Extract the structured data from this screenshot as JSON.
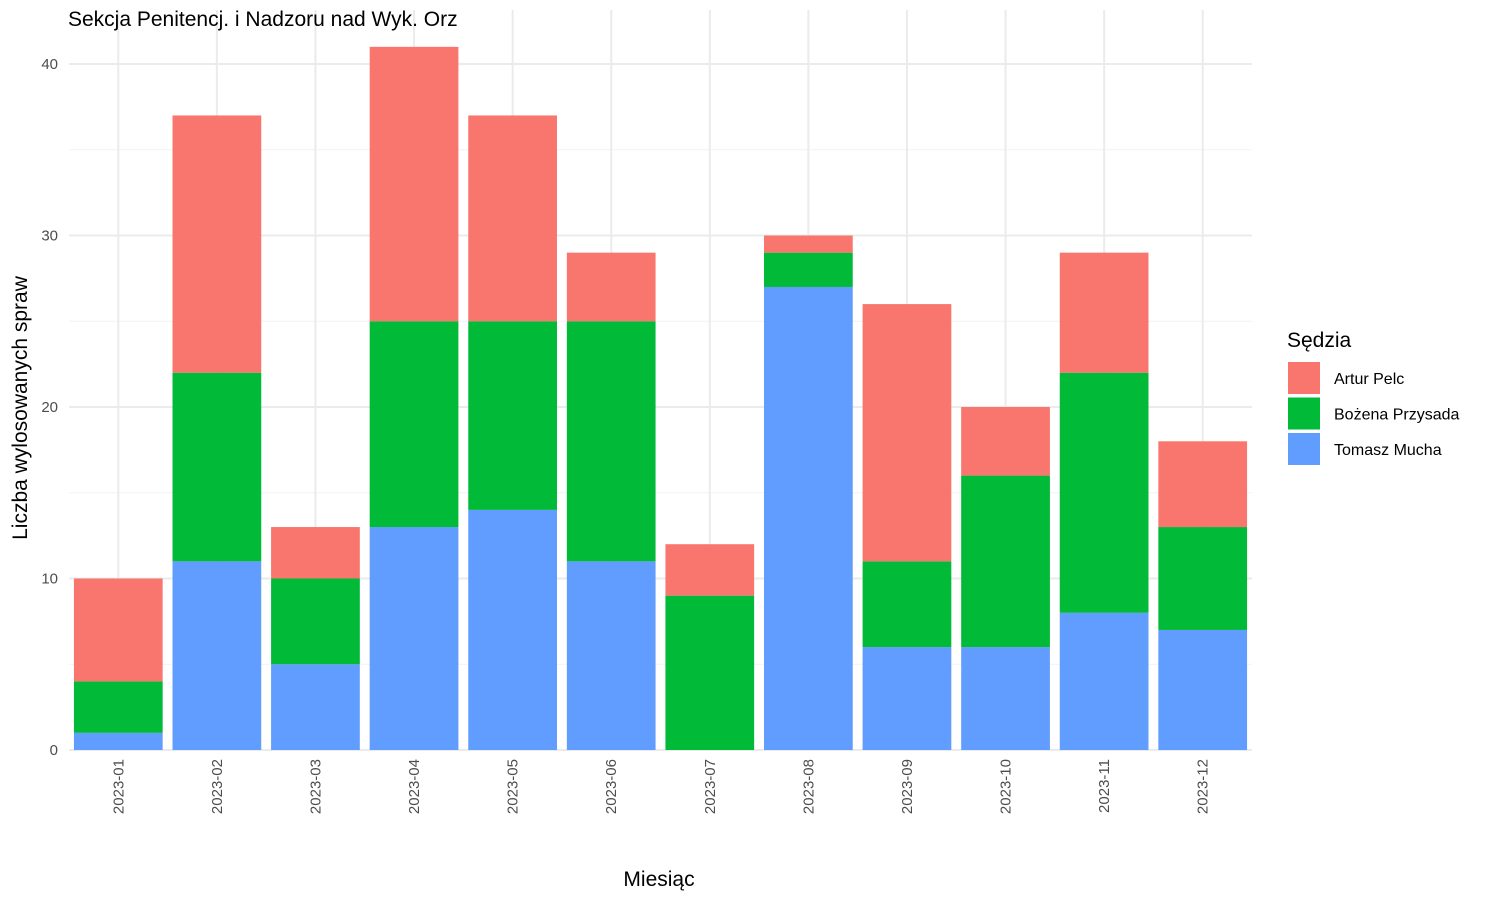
{
  "chart_data": {
    "type": "bar",
    "stacked": true,
    "title": "Sekcja Penitencj. i Nadzoru nad Wyk. Orz",
    "xlabel": "Miesiąc",
    "ylabel": "Liczba wylosowanych spraw",
    "ylim": [
      0,
      42
    ],
    "yticks": [
      0,
      10,
      20,
      30,
      40
    ],
    "grid": true,
    "legend_title": "Sędzia",
    "legend_position": "right",
    "categories": [
      "2023-01",
      "2023-02",
      "2023-03",
      "2023-04",
      "2023-05",
      "2023-06",
      "2023-07",
      "2023-08",
      "2023-09",
      "2023-10",
      "2023-11",
      "2023-12"
    ],
    "series": [
      {
        "name": "Tomasz Mucha",
        "color": "#619CFF",
        "values": [
          1,
          11,
          5,
          13,
          14,
          11,
          0,
          27,
          6,
          6,
          8,
          7
        ]
      },
      {
        "name": "Bożena Przysada",
        "color": "#00BA38",
        "values": [
          3,
          11,
          5,
          12,
          11,
          14,
          9,
          2,
          5,
          10,
          14,
          6
        ]
      },
      {
        "name": "Artur Pelc",
        "color": "#F8766D",
        "values": [
          6,
          15,
          3,
          16,
          12,
          4,
          3,
          1,
          15,
          4,
          7,
          5
        ]
      }
    ],
    "legend_order": [
      "Artur Pelc",
      "Bożena Przysada",
      "Tomasz Mucha"
    ]
  }
}
